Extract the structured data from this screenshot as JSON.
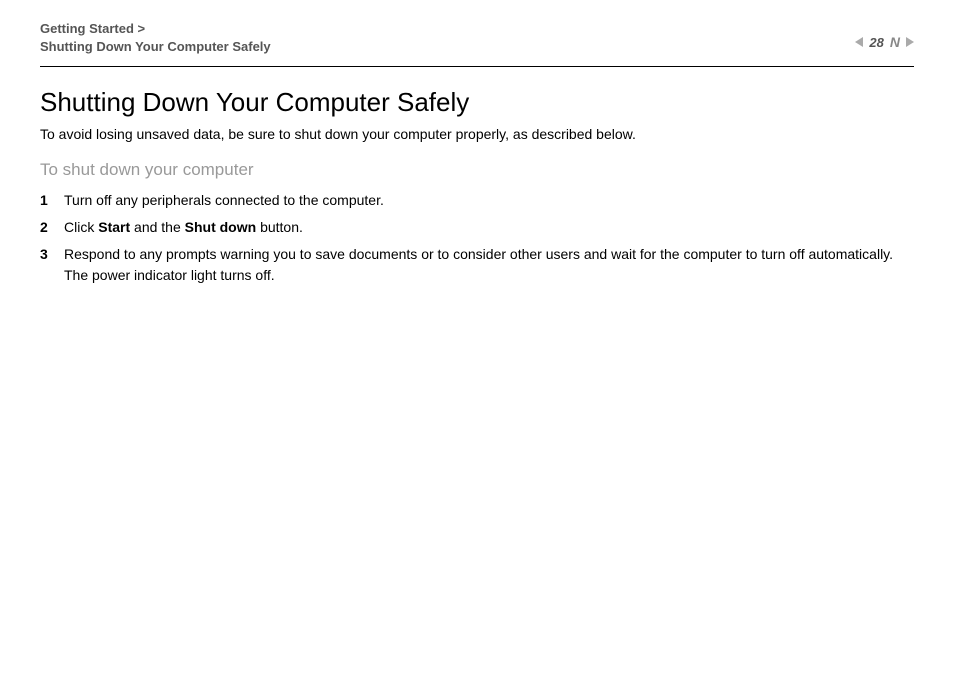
{
  "header": {
    "breadcrumb_line1": "Getting Started >",
    "breadcrumb_line2": "Shutting Down Your Computer Safely",
    "page_number": "28"
  },
  "content": {
    "title": "Shutting Down Your Computer Safely",
    "intro": "To avoid losing unsaved data, be sure to shut down your computer properly, as described below.",
    "subtitle": "To shut down your computer",
    "steps": [
      {
        "num": "1",
        "text": "Turn off any peripherals connected to the computer."
      },
      {
        "num": "2",
        "prefix": "Click ",
        "bold1": "Start",
        "mid": " and the ",
        "bold2": "Shut down",
        "suffix": " button."
      },
      {
        "num": "3",
        "line1": "Respond to any prompts warning you to save documents or to consider other users and wait for the computer to turn off automatically.",
        "line2": "The power indicator light turns off."
      }
    ]
  },
  "colors": {
    "breadcrumb": "#555555",
    "subtitle": "#999999",
    "text": "#000000",
    "arrow": "#aaaaaa"
  }
}
